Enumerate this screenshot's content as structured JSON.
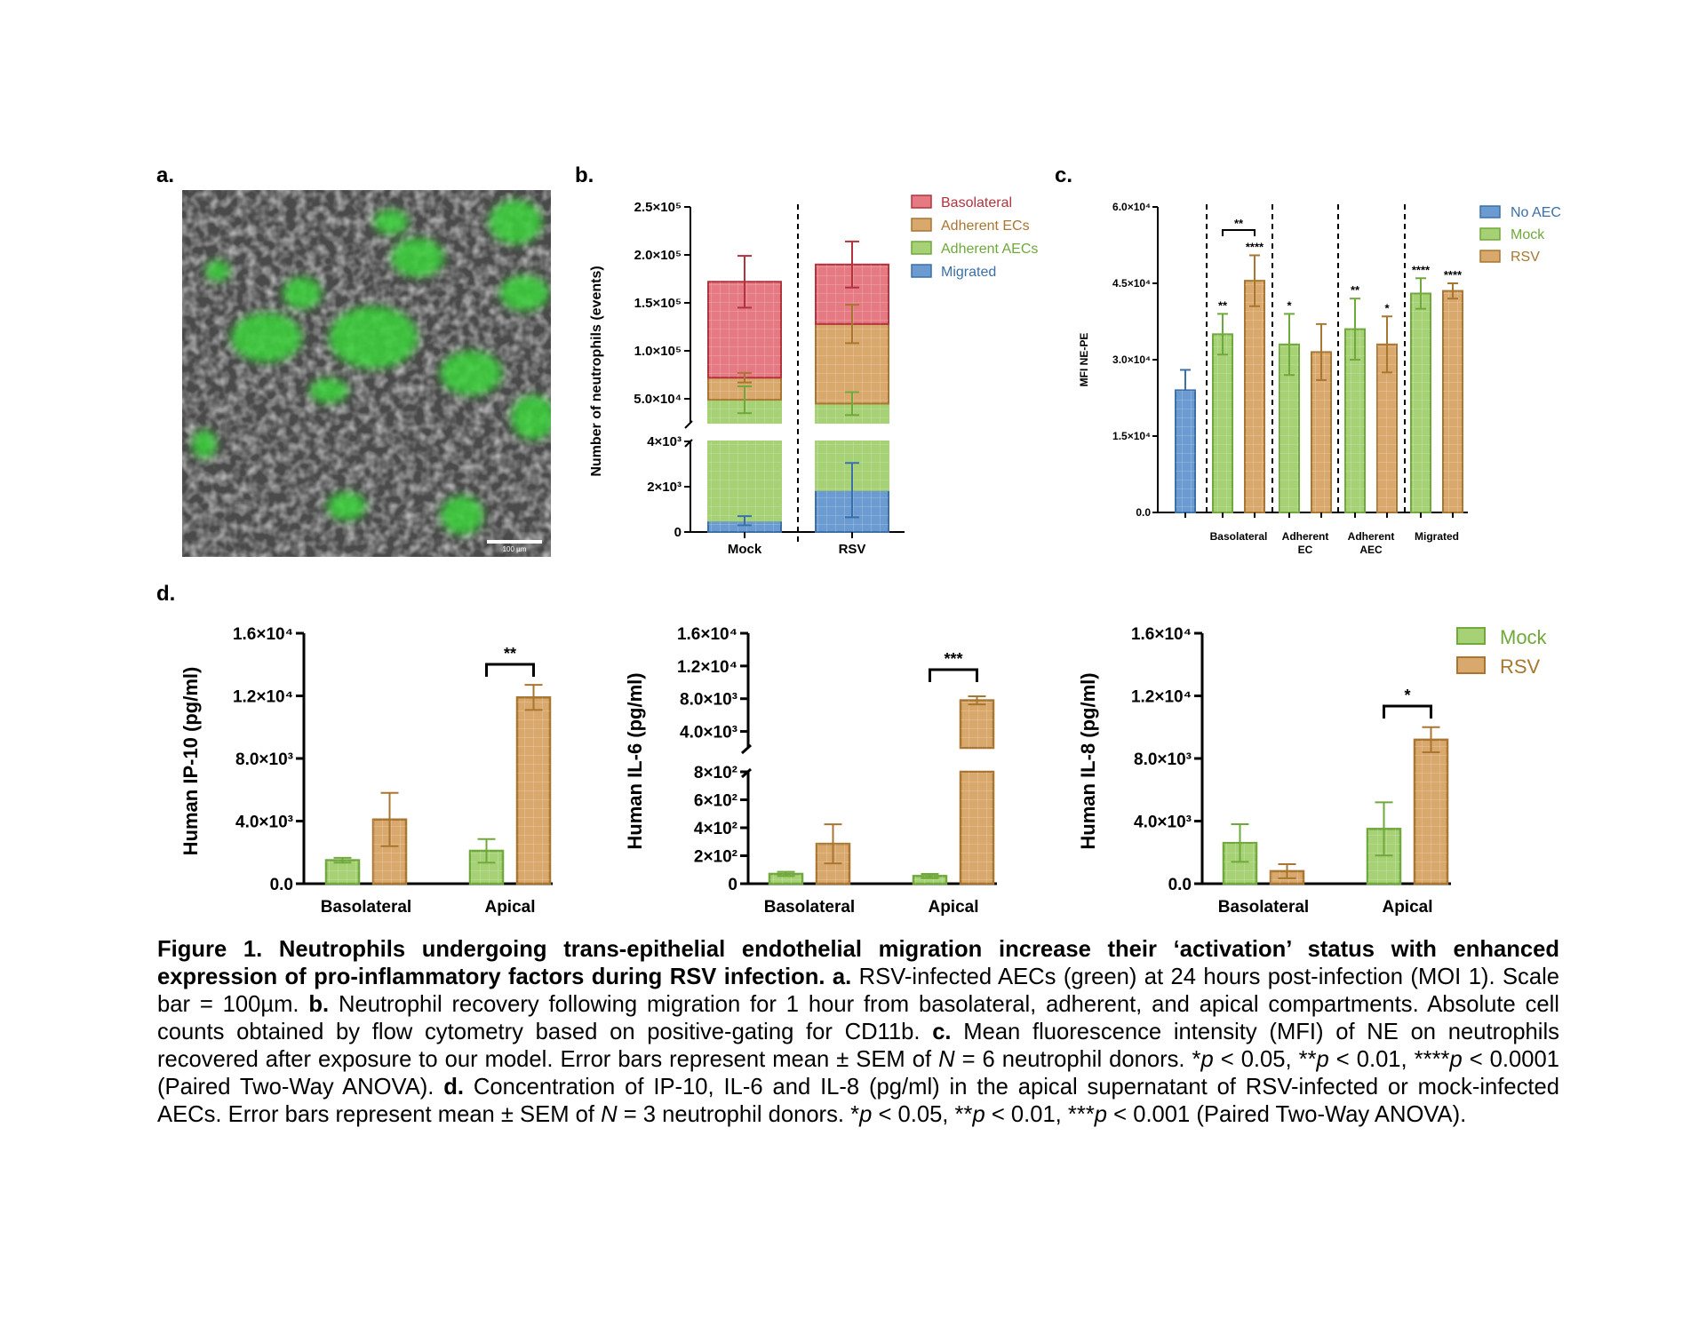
{
  "panel_labels": {
    "a": "a.",
    "b": "b.",
    "c": "c.",
    "d": "d."
  },
  "colors": {
    "mock": "#A6D174",
    "rsv": "#D9A86C",
    "no_aec": "#6B9BD1",
    "basolateral": "#E57A83",
    "mock_edge": "#6FA83B",
    "rsv_edge": "#A87630",
    "no_aec_edge": "#3B6FA8",
    "baso_edge": "#B2333E",
    "mock_text": "#6FA83B",
    "rsv_text": "#A87630",
    "no_aec_text": "#3B6FA8",
    "baso_text": "#B2333E"
  },
  "image_a": {
    "scale_bar_label": "100 µm"
  },
  "chart_data": [
    {
      "id": "b",
      "type": "bar",
      "stacked": true,
      "broken_axis": true,
      "categories": [
        "Mock",
        "RSV"
      ],
      "ylabel": "Number of neutrophils (events)",
      "yticks_lower": [
        "0",
        "2×10³",
        "4×10³"
      ],
      "yticks_upper": [
        "5.0×10⁴",
        "1.0×10⁵",
        "1.5×10⁵",
        "2.0×10⁵",
        "2.5×10⁵"
      ],
      "legend": [
        "Basolateral",
        "Adherent ECs",
        "Adherent AECs",
        "Migrated"
      ],
      "series": [
        {
          "name": "Migrated",
          "values": [
            500,
            1850
          ],
          "err": [
            200,
            1200
          ]
        },
        {
          "name": "Adherent AECs",
          "values": [
            49000,
            45000
          ],
          "err": [
            14000,
            12000
          ]
        },
        {
          "name": "Adherent ECs",
          "values": [
            23000,
            83000
          ],
          "err": [
            5000,
            20000
          ]
        },
        {
          "name": "Basolateral",
          "values": [
            100000,
            62000
          ],
          "err": [
            27000,
            24000
          ]
        }
      ],
      "totals": [
        172000,
        190000
      ]
    },
    {
      "id": "c",
      "type": "bar",
      "categories": [
        "",
        "Basolateral",
        "Adherent EC",
        "Adherent AEC",
        "Migrated"
      ],
      "category_display": [
        "",
        "Basolateral",
        "Adherent\nEC",
        "Adherent\nAEC",
        "Migrated"
      ],
      "ylabel": "MFI NE-PE",
      "ylim": [
        0,
        60000
      ],
      "yticks": [
        "0.0",
        "1.5×10⁴",
        "3.0×10⁴",
        "4.5×10⁴",
        "6.0×10⁴"
      ],
      "legend": [
        "No AEC",
        "Mock",
        "RSV"
      ],
      "series": [
        {
          "name": "No AEC",
          "values": [
            24000,
            null,
            null,
            null,
            null
          ],
          "err": [
            4000,
            null,
            null,
            null,
            null
          ]
        },
        {
          "name": "Mock",
          "values": [
            null,
            35000,
            33000,
            36000,
            43000
          ],
          "err": [
            null,
            4000,
            6000,
            6000,
            3000
          ]
        },
        {
          "name": "RSV",
          "values": [
            null,
            45500,
            31500,
            33000,
            43500
          ],
          "err": [
            null,
            5000,
            5500,
            5500,
            1500
          ]
        }
      ],
      "significance": [
        {
          "group": 1,
          "series": "Mock",
          "label": "**"
        },
        {
          "group": 1,
          "series": "RSV",
          "label": "****"
        },
        {
          "group": 1,
          "bracket": true,
          "label": "**"
        },
        {
          "group": 2,
          "series": "Mock",
          "label": "*"
        },
        {
          "group": 3,
          "series": "Mock",
          "label": "**"
        },
        {
          "group": 3,
          "series": "RSV",
          "label": "*"
        },
        {
          "group": 4,
          "series": "Mock",
          "label": "****"
        },
        {
          "group": 4,
          "series": "RSV",
          "label": "****"
        }
      ]
    },
    {
      "id": "d1",
      "type": "bar",
      "categories": [
        "Basolateral",
        "Apical"
      ],
      "ylabel": "Human IP-10 (pg/ml)",
      "ylim": [
        0,
        16000
      ],
      "yticks": [
        "0.0",
        "4.0×10³",
        "8.0×10³",
        "1.2×10⁴",
        "1.6×10⁴"
      ],
      "series": [
        {
          "name": "Mock",
          "values": [
            1500,
            2100
          ],
          "err": [
            150,
            750
          ]
        },
        {
          "name": "RSV",
          "values": [
            4100,
            11900
          ],
          "err": [
            1700,
            800
          ]
        }
      ],
      "significance": [
        {
          "group": 1,
          "label": "**"
        }
      ]
    },
    {
      "id": "d2",
      "type": "bar",
      "broken_axis": true,
      "categories": [
        "Basolateral",
        "Apical"
      ],
      "ylabel": "Human IL-6 (pg/ml)",
      "yticks_lower": [
        "0",
        "2×10²",
        "4×10²",
        "6×10²",
        "8×10²"
      ],
      "yticks_upper": [
        "4.0×10³",
        "8.0×10³",
        "1.2×10⁴",
        "1.6×10⁴"
      ],
      "series": [
        {
          "name": "Mock",
          "values": [
            70,
            55
          ],
          "err": [
            15,
            15
          ]
        },
        {
          "name": "RSV",
          "values": [
            285,
            7800
          ],
          "err": [
            140,
            500
          ]
        }
      ],
      "significance": [
        {
          "group": 1,
          "label": "***"
        }
      ]
    },
    {
      "id": "d3",
      "type": "bar",
      "categories": [
        "Basolateral",
        "Apical"
      ],
      "ylabel": "Human IL-8 (pg/ml)",
      "ylim": [
        0,
        16000
      ],
      "yticks": [
        "0.0",
        "4.0×10³",
        "8.0×10³",
        "1.2×10⁴",
        "1.6×10⁴"
      ],
      "legend": [
        "Mock",
        "RSV"
      ],
      "series": [
        {
          "name": "Mock",
          "values": [
            2600,
            3500
          ],
          "err": [
            1200,
            1700
          ]
        },
        {
          "name": "RSV",
          "values": [
            800,
            9200
          ],
          "err": [
            450,
            800
          ]
        }
      ],
      "significance": [
        {
          "group": 1,
          "label": "*"
        }
      ]
    }
  ],
  "caption": {
    "bold_intro": "Figure 1. Neutrophils undergoing trans-epithelial endothelial migration increase their ‘activation’ status with enhanced expression of pro-inflammatory factors during RSV infection.",
    "a_label": "a.",
    "a_text": "RSV-infected AECs (green) at 24 hours post-infection (MOI 1). Scale bar = 100µm.",
    "b_label": "b.",
    "b_text": "Neutrophil recovery following migration for 1 hour from basolateral, adherent, and apical compartments. Absolute cell counts obtained by flow cytometry based on positive-gating for CD11b.",
    "c_label": "c.",
    "c_text_1": "Mean fluorescence intensity (MFI) of NE on neutrophils recovered after exposure to our model. Error bars represent mean ± SEM of",
    "c_n": "N",
    "c_text_2": "= 6 neutrophil donors. *",
    "c_p1": "p",
    "c_text_3": "< 0.05, **",
    "c_p2": "p",
    "c_text_4": "< 0.01, ****",
    "c_p3": "p",
    "c_text_5": "< 0.0001 (Paired Two-Way ANOVA).",
    "d_label": "d.",
    "d_text_1": "Concentration of IP-10, IL-6 and IL-8 (pg/ml) in the apical supernatant of RSV-infected or mock-infected AECs. Error bars represent mean ± SEM of",
    "d_n": "N",
    "d_text_2": "= 3 neutrophil donors. *",
    "d_p1": "p",
    "d_text_3": "< 0.05, **",
    "d_p2": "p",
    "d_text_4": "< 0.01, ***",
    "d_p3": "p",
    "d_text_5": "< 0.001 (Paired Two-Way ANOVA)."
  }
}
